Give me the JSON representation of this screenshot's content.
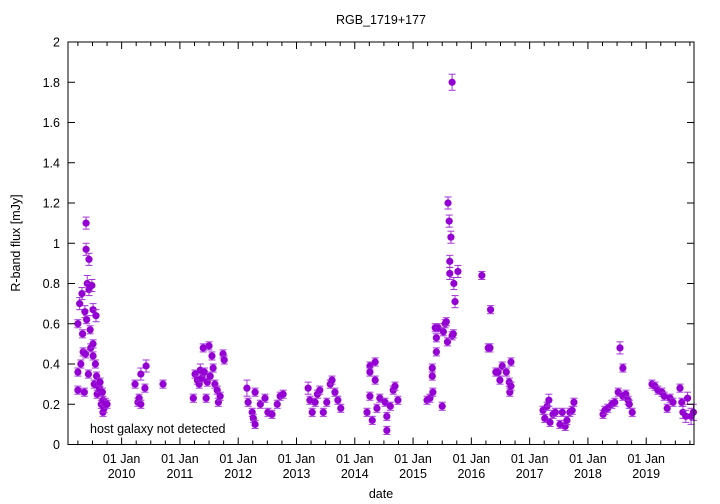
{
  "chart_data": {
    "type": "scatter",
    "title": "RGB_1719+177",
    "xlabel": "date",
    "ylabel": "R-band flux [mJy]",
    "annotation": "host galaxy not detected",
    "xlim": [
      2009.08,
      2019.82
    ],
    "ylim": [
      0,
      2
    ],
    "grid": false,
    "yticks": [
      {
        "value": 0,
        "label": "0"
      },
      {
        "value": 0.2,
        "label": "0.2"
      },
      {
        "value": 0.4,
        "label": "0.4"
      },
      {
        "value": 0.6,
        "label": "0.6"
      },
      {
        "value": 0.8,
        "label": "0.8"
      },
      {
        "value": 1,
        "label": "1"
      },
      {
        "value": 1.2,
        "label": "1.2"
      },
      {
        "value": 1.4,
        "label": "1.4"
      },
      {
        "value": 1.6,
        "label": "1.6"
      },
      {
        "value": 1.8,
        "label": "1.8"
      },
      {
        "value": 2,
        "label": "2"
      }
    ],
    "xticks": [
      {
        "value": 2010,
        "line1": "01 Jan",
        "line2": "2010"
      },
      {
        "value": 2011,
        "line1": "01 Jan",
        "line2": "2011"
      },
      {
        "value": 2012,
        "line1": "01 Jan",
        "line2": "2012"
      },
      {
        "value": 2013,
        "line1": "01 Jan",
        "line2": "2013"
      },
      {
        "value": 2014,
        "line1": "01 Jan",
        "line2": "2014"
      },
      {
        "value": 2015,
        "line1": "01 Jan",
        "line2": "2015"
      },
      {
        "value": 2016,
        "line1": "01 Jan",
        "line2": "2016"
      },
      {
        "value": 2017,
        "line1": "01 Jan",
        "line2": "2017"
      },
      {
        "value": 2018,
        "line1": "01 Jan",
        "line2": "2018"
      },
      {
        "value": 2019,
        "line1": "01 Jan",
        "line2": "2019"
      }
    ],
    "colors": {
      "point": "#9400d3",
      "errorbar": "#a433d8"
    },
    "series": [
      {
        "name": "R-band flux",
        "points_format": [
          "year",
          "flux_mJy",
          "error_mJy"
        ],
        "points": [
          [
            2009.25,
            0.6,
            0.02
          ],
          [
            2009.25,
            0.36,
            0.02
          ],
          [
            2009.25,
            0.27,
            0.02
          ],
          [
            2009.28,
            0.7,
            0.03
          ],
          [
            2009.3,
            0.4,
            0.02
          ],
          [
            2009.32,
            0.75,
            0.03
          ],
          [
            2009.33,
            0.55,
            0.02
          ],
          [
            2009.34,
            0.46,
            0.02
          ],
          [
            2009.36,
            0.26,
            0.02
          ],
          [
            2009.37,
            0.66,
            0.03
          ],
          [
            2009.38,
            0.45,
            0.02
          ],
          [
            2009.39,
            1.1,
            0.03
          ],
          [
            2009.39,
            0.97,
            0.03
          ],
          [
            2009.4,
            0.62,
            0.02
          ],
          [
            2009.41,
            0.8,
            0.04
          ],
          [
            2009.43,
            0.35,
            0.02
          ],
          [
            2009.44,
            0.92,
            0.03
          ],
          [
            2009.44,
            0.77,
            0.03
          ],
          [
            2009.46,
            0.57,
            0.02
          ],
          [
            2009.47,
            0.48,
            0.02
          ],
          [
            2009.49,
            0.79,
            0.03
          ],
          [
            2009.51,
            0.67,
            0.03
          ],
          [
            2009.51,
            0.5,
            0.02
          ],
          [
            2009.51,
            0.44,
            0.02
          ],
          [
            2009.53,
            0.3,
            0.02
          ],
          [
            2009.55,
            0.4,
            0.02
          ],
          [
            2009.56,
            0.64,
            0.03
          ],
          [
            2009.57,
            0.34,
            0.02
          ],
          [
            2009.58,
            0.25,
            0.02
          ],
          [
            2009.6,
            0.29,
            0.02
          ],
          [
            2009.62,
            0.28,
            0.02
          ],
          [
            2009.63,
            0.31,
            0.02
          ],
          [
            2009.65,
            0.2,
            0.02
          ],
          [
            2009.67,
            0.26,
            0.02
          ],
          [
            2009.68,
            0.22,
            0.02
          ],
          [
            2009.68,
            0.16,
            0.02
          ],
          [
            2009.7,
            0.18,
            0.02
          ],
          [
            2009.72,
            0.21,
            0.02
          ],
          [
            2009.75,
            0.2,
            0.02
          ],
          [
            2010.23,
            0.3,
            0.02
          ],
          [
            2010.28,
            0.21,
            0.02
          ],
          [
            2010.3,
            0.23,
            0.02
          ],
          [
            2010.33,
            0.35,
            0.03
          ],
          [
            2010.33,
            0.2,
            0.02
          ],
          [
            2010.4,
            0.28,
            0.02
          ],
          [
            2010.42,
            0.39,
            0.03
          ],
          [
            2010.71,
            0.3,
            0.02
          ],
          [
            2011.23,
            0.23,
            0.02
          ],
          [
            2011.26,
            0.35,
            0.02
          ],
          [
            2011.3,
            0.32,
            0.02
          ],
          [
            2011.33,
            0.3,
            0.02
          ],
          [
            2011.35,
            0.37,
            0.03
          ],
          [
            2011.38,
            0.33,
            0.02
          ],
          [
            2011.4,
            0.48,
            0.02
          ],
          [
            2011.42,
            0.36,
            0.02
          ],
          [
            2011.45,
            0.23,
            0.02
          ],
          [
            2011.47,
            0.31,
            0.02
          ],
          [
            2011.5,
            0.49,
            0.02
          ],
          [
            2011.52,
            0.34,
            0.02
          ],
          [
            2011.55,
            0.44,
            0.02
          ],
          [
            2011.57,
            0.38,
            0.02
          ],
          [
            2011.6,
            0.3,
            0.02
          ],
          [
            2011.64,
            0.27,
            0.02
          ],
          [
            2011.66,
            0.21,
            0.02
          ],
          [
            2011.69,
            0.24,
            0.02
          ],
          [
            2011.74,
            0.45,
            0.02
          ],
          [
            2011.76,
            0.42,
            0.02
          ],
          [
            2012.15,
            0.28,
            0.04
          ],
          [
            2012.17,
            0.21,
            0.02
          ],
          [
            2012.24,
            0.16,
            0.02
          ],
          [
            2012.26,
            0.13,
            0.02
          ],
          [
            2012.29,
            0.1,
            0.02
          ],
          [
            2012.29,
            0.26,
            0.02
          ],
          [
            2012.38,
            0.2,
            0.02
          ],
          [
            2012.46,
            0.23,
            0.02
          ],
          [
            2012.51,
            0.16,
            0.02
          ],
          [
            2012.58,
            0.15,
            0.02
          ],
          [
            2012.67,
            0.2,
            0.02
          ],
          [
            2012.72,
            0.24,
            0.02
          ],
          [
            2012.77,
            0.25,
            0.02
          ],
          [
            2013.2,
            0.28,
            0.03
          ],
          [
            2013.23,
            0.22,
            0.02
          ],
          [
            2013.27,
            0.16,
            0.02
          ],
          [
            2013.32,
            0.21,
            0.02
          ],
          [
            2013.36,
            0.25,
            0.02
          ],
          [
            2013.4,
            0.27,
            0.02
          ],
          [
            2013.46,
            0.16,
            0.02
          ],
          [
            2013.52,
            0.21,
            0.02
          ],
          [
            2013.58,
            0.3,
            0.02
          ],
          [
            2013.61,
            0.32,
            0.02
          ],
          [
            2013.66,
            0.26,
            0.02
          ],
          [
            2013.71,
            0.22,
            0.02
          ],
          [
            2013.76,
            0.18,
            0.02
          ],
          [
            2014.21,
            0.16,
            0.02
          ],
          [
            2014.26,
            0.39,
            0.02
          ],
          [
            2014.26,
            0.36,
            0.02
          ],
          [
            2014.26,
            0.24,
            0.02
          ],
          [
            2014.3,
            0.12,
            0.02
          ],
          [
            2014.35,
            0.41,
            0.02
          ],
          [
            2014.35,
            0.32,
            0.02
          ],
          [
            2014.38,
            0.18,
            0.02
          ],
          [
            2014.43,
            0.23,
            0.02
          ],
          [
            2014.52,
            0.21,
            0.02
          ],
          [
            2014.55,
            0.14,
            0.02
          ],
          [
            2014.55,
            0.07,
            0.02
          ],
          [
            2014.61,
            0.19,
            0.02
          ],
          [
            2014.66,
            0.27,
            0.02
          ],
          [
            2014.69,
            0.29,
            0.02
          ],
          [
            2014.74,
            0.22,
            0.02
          ],
          [
            2015.24,
            0.22,
            0.02
          ],
          [
            2015.29,
            0.23,
            0.02
          ],
          [
            2015.33,
            0.34,
            0.02
          ],
          [
            2015.33,
            0.38,
            0.02
          ],
          [
            2015.34,
            0.26,
            0.02
          ],
          [
            2015.38,
            0.58,
            0.02
          ],
          [
            2015.4,
            0.46,
            0.02
          ],
          [
            2015.4,
            0.53,
            0.02
          ],
          [
            2015.43,
            0.58,
            0.02
          ],
          [
            2015.5,
            0.19,
            0.02
          ],
          [
            2015.52,
            0.56,
            0.02
          ],
          [
            2015.55,
            0.6,
            0.02
          ],
          [
            2015.57,
            0.61,
            0.02
          ],
          [
            2015.59,
            0.51,
            0.02
          ],
          [
            2015.6,
            1.2,
            0.03
          ],
          [
            2015.62,
            1.11,
            0.03
          ],
          [
            2015.63,
            0.91,
            0.03
          ],
          [
            2015.63,
            0.85,
            0.03
          ],
          [
            2015.65,
            1.03,
            0.03
          ],
          [
            2015.67,
            1.8,
            0.04
          ],
          [
            2015.67,
            0.54,
            0.02
          ],
          [
            2015.69,
            0.55,
            0.02
          ],
          [
            2015.7,
            0.8,
            0.03
          ],
          [
            2015.72,
            0.71,
            0.03
          ],
          [
            2015.77,
            0.86,
            0.03
          ],
          [
            2016.18,
            0.84,
            0.02
          ],
          [
            2016.29,
            0.48,
            0.02
          ],
          [
            2016.32,
            0.48,
            0.02
          ],
          [
            2016.33,
            0.67,
            0.02
          ],
          [
            2016.42,
            0.36,
            0.02
          ],
          [
            2016.46,
            0.36,
            0.02
          ],
          [
            2016.49,
            0.32,
            0.02
          ],
          [
            2016.53,
            0.39,
            0.02
          ],
          [
            2016.6,
            0.36,
            0.02
          ],
          [
            2016.65,
            0.31,
            0.02
          ],
          [
            2016.66,
            0.26,
            0.02
          ],
          [
            2016.68,
            0.29,
            0.02
          ],
          [
            2016.68,
            0.41,
            0.02
          ],
          [
            2017.23,
            0.17,
            0.02
          ],
          [
            2017.26,
            0.13,
            0.02
          ],
          [
            2017.3,
            0.19,
            0.02
          ],
          [
            2017.33,
            0.22,
            0.03
          ],
          [
            2017.35,
            0.11,
            0.02
          ],
          [
            2017.4,
            0.15,
            0.02
          ],
          [
            2017.44,
            0.16,
            0.02
          ],
          [
            2017.52,
            0.1,
            0.02
          ],
          [
            2017.56,
            0.16,
            0.02
          ],
          [
            2017.61,
            0.09,
            0.02
          ],
          [
            2017.64,
            0.12,
            0.02
          ],
          [
            2017.69,
            0.16,
            0.02
          ],
          [
            2017.73,
            0.17,
            0.02
          ],
          [
            2017.76,
            0.21,
            0.02
          ],
          [
            2018.26,
            0.15,
            0.02
          ],
          [
            2018.29,
            0.17,
            0.02
          ],
          [
            2018.34,
            0.18,
            0.02
          ],
          [
            2018.41,
            0.2,
            0.02
          ],
          [
            2018.46,
            0.21,
            0.02
          ],
          [
            2018.52,
            0.26,
            0.02
          ],
          [
            2018.55,
            0.48,
            0.03
          ],
          [
            2018.6,
            0.38,
            0.02
          ],
          [
            2018.6,
            0.24,
            0.02
          ],
          [
            2018.65,
            0.25,
            0.02
          ],
          [
            2018.69,
            0.22,
            0.02
          ],
          [
            2018.71,
            0.2,
            0.02
          ],
          [
            2018.76,
            0.16,
            0.02
          ],
          [
            2019.1,
            0.3,
            0.02
          ],
          [
            2019.15,
            0.29,
            0.02
          ],
          [
            2019.2,
            0.27,
            0.02
          ],
          [
            2019.27,
            0.26,
            0.02
          ],
          [
            2019.31,
            0.24,
            0.02
          ],
          [
            2019.36,
            0.18,
            0.02
          ],
          [
            2019.41,
            0.23,
            0.02
          ],
          [
            2019.46,
            0.21,
            0.02
          ],
          [
            2019.58,
            0.28,
            0.02
          ],
          [
            2019.61,
            0.21,
            0.02
          ],
          [
            2019.63,
            0.16,
            0.03
          ],
          [
            2019.68,
            0.14,
            0.03
          ],
          [
            2019.71,
            0.23,
            0.03
          ],
          [
            2019.77,
            0.14,
            0.04
          ],
          [
            2019.81,
            0.16,
            0.04
          ]
        ]
      }
    ]
  }
}
